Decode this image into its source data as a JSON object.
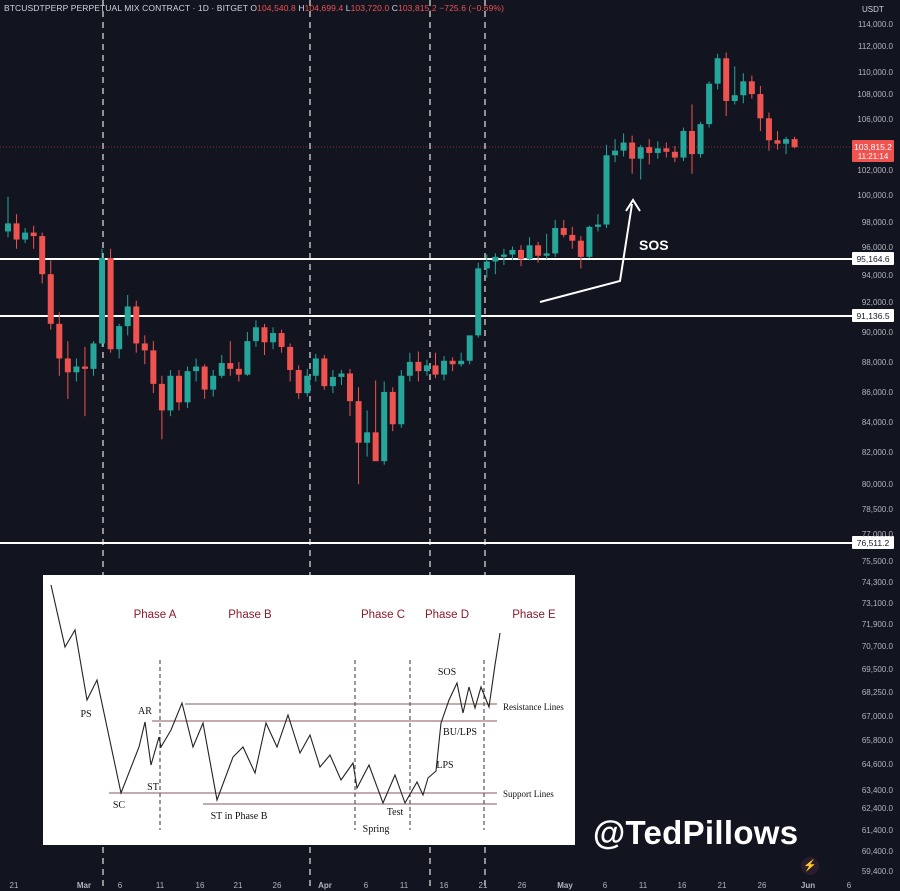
{
  "header": {
    "symbol": "BTCUSDTPERP PERPETUAL MIX CONTRACT · 1D · BITGET",
    "o_label": "O",
    "o_value": "104,540.8",
    "h_label": "H",
    "h_value": "104,699.4",
    "l_label": "L",
    "l_value": "103,720.0",
    "c_label": "C",
    "c_value": "103,815.2",
    "change": "−725.6 (−0.69%)"
  },
  "currency": "USDT",
  "handle": "@TedPillows",
  "chart_data": [
    {
      "type": "candlestick",
      "x_tick_labels": [
        "21",
        "Mar",
        "6",
        "11",
        "16",
        "21",
        "26",
        "Apr",
        "6",
        "11",
        "16",
        "21",
        "26",
        "May",
        "6",
        "11",
        "16",
        "21",
        "26",
        "Jun",
        "6"
      ],
      "y_tick_labels": [
        "114,000.0",
        "112,000.0",
        "110,000.0",
        "108,000.0",
        "106,000.0",
        "104,000.0",
        "102,000.0",
        "100,000.0",
        "98,000.0",
        "96,000.0",
        "94,000.0",
        "92,000.0",
        "90,000.0",
        "88,000.0",
        "86,000.0",
        "84,000.0",
        "82,000.0",
        "80,000.0",
        "78,500.0",
        "77,000.0",
        "75,500.0",
        "74,300.0",
        "73,100.0",
        "71,900.0",
        "70,700.0",
        "69,500.0",
        "68,250.0",
        "67,000.0",
        "65,800.0",
        "64,600.0",
        "63,400.0",
        "62,400.0",
        "61,400.0",
        "60,400.0",
        "59,400.0"
      ],
      "price_label": "103,815.2",
      "countdown": "11:21:14",
      "horizontal_levels": [
        {
          "label": "95,164.6",
          "value": 95164.6
        },
        {
          "label": "91,136.5",
          "value": 91136.5
        },
        {
          "label": "76,511.2",
          "value": 76511.2
        }
      ],
      "candles": [
        [
          96500,
          99500,
          96000,
          97200
        ],
        [
          97200,
          98000,
          95000,
          95800
        ],
        [
          95800,
          96800,
          95500,
          96400
        ],
        [
          96400,
          97000,
          95000,
          96100
        ],
        [
          96100,
          96400,
          92000,
          92800
        ],
        [
          92800,
          94000,
          88000,
          88500
        ],
        [
          88500,
          89500,
          84000,
          85500
        ],
        [
          85500,
          87000,
          82000,
          84300
        ],
        [
          84300,
          85500,
          83500,
          84800
        ],
        [
          84800,
          86500,
          80500,
          84600
        ],
        [
          84600,
          87000,
          84000,
          86800
        ],
        [
          86800,
          95000,
          86500,
          94200
        ],
        [
          94200,
          95000,
          86000,
          86300
        ],
        [
          86300,
          88500,
          85500,
          88300
        ],
        [
          88300,
          91000,
          87500,
          90000
        ],
        [
          90000,
          90500,
          86000,
          86800
        ],
        [
          86800,
          87500,
          85000,
          86200
        ],
        [
          86200,
          87000,
          82500,
          83300
        ],
        [
          83300,
          84000,
          78500,
          81000
        ],
        [
          81000,
          84500,
          80500,
          84000
        ],
        [
          84000,
          84500,
          81000,
          81700
        ],
        [
          81700,
          84800,
          81200,
          84400
        ],
        [
          84400,
          85500,
          83500,
          84800
        ],
        [
          84800,
          85000,
          82000,
          82800
        ],
        [
          82800,
          84500,
          82200,
          84000
        ],
        [
          84000,
          85800,
          83800,
          85100
        ],
        [
          85100,
          87000,
          84000,
          84600
        ],
        [
          84600,
          85200,
          83500,
          84100
        ],
        [
          84100,
          87800,
          84000,
          87000
        ],
        [
          87000,
          88800,
          86500,
          88200
        ],
        [
          88200,
          88500,
          85800,
          86900
        ],
        [
          86900,
          88200,
          86300,
          87700
        ],
        [
          87700,
          88000,
          86000,
          86500
        ],
        [
          86500,
          86800,
          83500,
          84500
        ],
        [
          84500,
          84900,
          82000,
          82500
        ],
        [
          82500,
          84600,
          82200,
          84000
        ],
        [
          84000,
          85900,
          83500,
          85500
        ],
        [
          85500,
          85800,
          82800,
          83100
        ],
        [
          83100,
          84500,
          82500,
          83900
        ],
        [
          83900,
          84500,
          83200,
          84200
        ],
        [
          84200,
          84600,
          80500,
          81800
        ],
        [
          81800,
          83000,
          74600,
          78200
        ],
        [
          78200,
          81000,
          77000,
          79100
        ],
        [
          79100,
          83600,
          76800,
          76600
        ],
        [
          76600,
          83500,
          76300,
          82600
        ],
        [
          82600,
          83000,
          79200,
          79800
        ],
        [
          79800,
          84500,
          79500,
          84000
        ],
        [
          84000,
          86000,
          83500,
          85200
        ],
        [
          85200,
          86100,
          83500,
          84400
        ],
        [
          84400,
          85400,
          84000,
          84900
        ],
        [
          84900,
          86000,
          83800,
          84100
        ],
        [
          84100,
          85700,
          83600,
          85300
        ],
        [
          85300,
          85600,
          84400,
          85000
        ],
        [
          85000,
          86000,
          84800,
          85300
        ],
        [
          85300,
          87500,
          85000,
          87500
        ],
        [
          87500,
          93800,
          87300,
          93300
        ],
        [
          93300,
          94500,
          92500,
          93900
        ],
        [
          93900,
          94600,
          92800,
          94300
        ],
        [
          94300,
          95000,
          93600,
          94500
        ],
        [
          94500,
          95200,
          94000,
          94900
        ],
        [
          94900,
          95300,
          93500,
          94100
        ],
        [
          94100,
          96000,
          94000,
          95300
        ],
        [
          95300,
          95600,
          93800,
          94400
        ],
        [
          94400,
          96300,
          94100,
          94600
        ],
        [
          94600,
          97500,
          94300,
          96800
        ],
        [
          96800,
          97500,
          96000,
          96200
        ],
        [
          96200,
          96900,
          95000,
          95700
        ],
        [
          95700,
          96100,
          93300,
          94300
        ],
        [
          94300,
          97000,
          94200,
          96900
        ],
        [
          96900,
          98000,
          96500,
          97100
        ],
        [
          97100,
          104000,
          96800,
          103100
        ],
        [
          103100,
          104500,
          102500,
          103500
        ],
        [
          103500,
          105000,
          103000,
          104200
        ],
        [
          104200,
          104800,
          101500,
          102800
        ],
        [
          102800,
          104000,
          101000,
          103800
        ],
        [
          103800,
          104500,
          102300,
          103300
        ],
        [
          103300,
          104300,
          102800,
          103700
        ],
        [
          103700,
          104200,
          102900,
          103400
        ],
        [
          103400,
          103900,
          102500,
          102900
        ],
        [
          102900,
          105500,
          102600,
          105200
        ],
        [
          105200,
          107500,
          101500,
          103200
        ],
        [
          103200,
          106000,
          102900,
          105800
        ],
        [
          105800,
          109500,
          105500,
          109300
        ],
        [
          109300,
          111900,
          108800,
          111500
        ],
        [
          111500,
          112000,
          106500,
          107800
        ],
        [
          107800,
          110800,
          107500,
          108300
        ],
        [
          108300,
          110200,
          107600,
          109500
        ],
        [
          109500,
          110000,
          108000,
          108400
        ],
        [
          108400,
          109100,
          105200,
          106300
        ],
        [
          106300,
          106800,
          103500,
          104400
        ],
        [
          104400,
          105200,
          103600,
          104100
        ],
        [
          104100,
          104700,
          103200,
          104500
        ],
        [
          104500,
          104700,
          103700,
          103800
        ]
      ]
    },
    {
      "type": "line",
      "phase_labels": [
        "Phase A",
        "Phase B",
        "Phase C",
        "Phase D",
        "Phase E"
      ],
      "event_labels": [
        "PS",
        "SC",
        "AR",
        "ST",
        "ST in Phase B",
        "Spring",
        "Test",
        "LPS",
        "BU/LPS",
        "SOS"
      ],
      "line_labels": [
        "Resistance Lines",
        "Support Lines"
      ],
      "annotations": [
        "SOS"
      ]
    }
  ]
}
